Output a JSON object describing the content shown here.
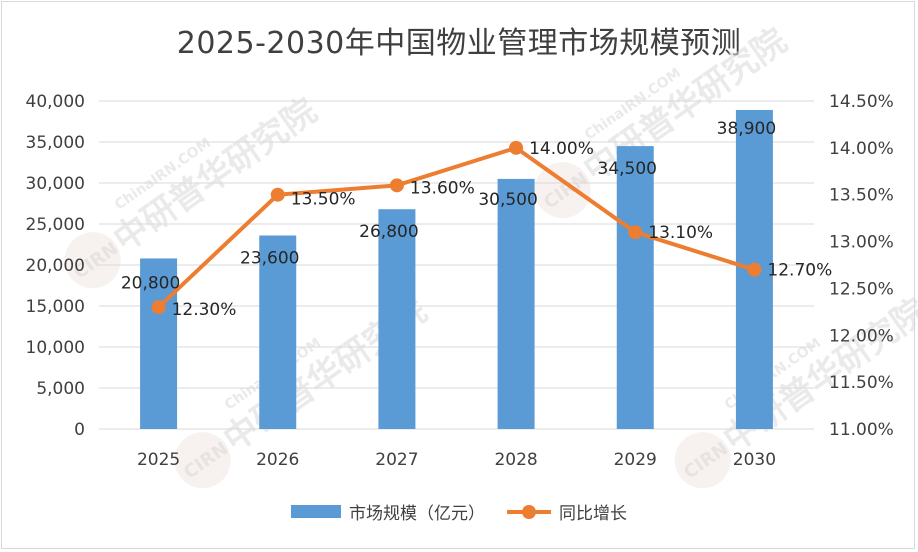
{
  "chart_data": {
    "type": "bar+line",
    "title": "2025-2030年中国物业管理市场规模预测",
    "categories": [
      "2025",
      "2026",
      "2027",
      "2028",
      "2029",
      "2030"
    ],
    "series": [
      {
        "name": "市场规模（亿元）",
        "type": "bar",
        "axis": "left",
        "values": [
          20800,
          23600,
          26800,
          30500,
          34500,
          38900
        ],
        "labels": [
          "20,800",
          "23,600",
          "26,800",
          "30,500",
          "34,500",
          "38,900"
        ],
        "color": "#5b9bd5"
      },
      {
        "name": "同比增长",
        "type": "line",
        "axis": "right",
        "values": [
          12.3,
          13.5,
          13.6,
          14.0,
          13.1,
          12.7
        ],
        "labels": [
          "12.30%",
          "13.50%",
          "13.60%",
          "14.00%",
          "13.10%",
          "12.70%"
        ],
        "color": "#ed7d31"
      }
    ],
    "y_left": {
      "lim": [
        0,
        40000
      ],
      "ticks": [
        0,
        5000,
        10000,
        15000,
        20000,
        25000,
        30000,
        35000,
        40000
      ],
      "tick_labels": [
        "0",
        "5,000",
        "10,000",
        "15,000",
        "20,000",
        "25,000",
        "30,000",
        "35,000",
        "40,000"
      ]
    },
    "y_right": {
      "lim": [
        11.0,
        14.5
      ],
      "ticks": [
        11.0,
        11.5,
        12.0,
        12.5,
        13.0,
        13.5,
        14.0,
        14.5
      ],
      "tick_labels": [
        "11.00%",
        "11.50%",
        "12.00%",
        "12.50%",
        "13.00%",
        "13.50%",
        "14.00%",
        "14.50%"
      ]
    },
    "grid": true,
    "legend": "bottom"
  },
  "watermark": {
    "logo_text": "CIRN",
    "brand_text": "中研普华研究院",
    "site_text": "ChinaIRN.COM"
  }
}
